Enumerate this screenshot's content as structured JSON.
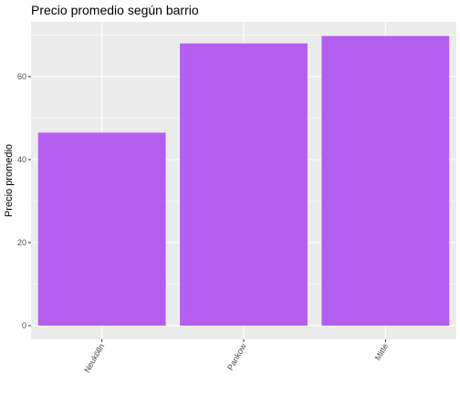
{
  "chart_data": {
    "type": "bar",
    "title": "Precio promedio según barrio",
    "xlabel": "",
    "ylabel": "Precio promedio",
    "categories": [
      "Neukölln",
      "Pankow",
      "Mitte"
    ],
    "values": [
      46.5,
      68,
      69.8
    ],
    "ylim": [
      0,
      72
    ],
    "yticks": [
      0,
      20,
      40,
      60
    ],
    "grid": true,
    "legend": "none",
    "colors": {
      "bar": "#b156f0",
      "panel": "#ebebeb",
      "grid": "#ffffff",
      "tick_text": "#4d4d4d"
    }
  }
}
